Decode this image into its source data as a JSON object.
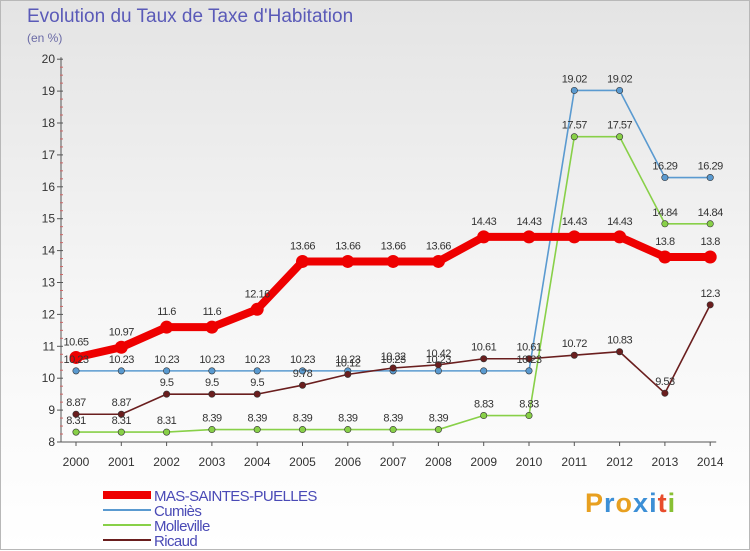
{
  "header": {
    "title": "Evolution du Taux de Taxe d'Habitation",
    "subtitle": "(en %)"
  },
  "brand": {
    "letters": [
      "P",
      "r",
      "o",
      "x",
      "i",
      "t",
      "i"
    ],
    "colors": [
      "#e8a020",
      "#3c8fd6",
      "#e8a020",
      "#3c8fd6",
      "#3c8fd6",
      "#e84c2c",
      "#88c033"
    ]
  },
  "chart_data": {
    "type": "line",
    "title": "Evolution du Taux de Taxe d'Habitation",
    "ylabel": "(en %)",
    "xlabel": "",
    "x": [
      "2000",
      "2001",
      "2002",
      "2003",
      "2004",
      "2005",
      "2006",
      "2007",
      "2008",
      "2009",
      "2010",
      "2011",
      "2012",
      "2013",
      "2014"
    ],
    "ylim": [
      8,
      20
    ],
    "yticks": [
      "8",
      "9",
      "10",
      "11",
      "12",
      "13",
      "14",
      "15",
      "16",
      "17",
      "18",
      "19",
      "20"
    ],
    "grid": false,
    "legend_position": "bottom-left",
    "series": [
      {
        "name": "MAS-SAINTES-PUELLES",
        "color": "#ee0000",
        "emphasis": true,
        "values": [
          10.65,
          10.97,
          11.6,
          11.6,
          12.16,
          13.66,
          13.66,
          13.66,
          13.66,
          14.43,
          14.43,
          14.43,
          14.43,
          13.8,
          13.8
        ],
        "labels": [
          "10.65",
          "10.97",
          "11.6",
          "11.6",
          "12.16",
          "13.66",
          "13.66",
          "13.66",
          "13.66",
          "14.43",
          "14.43",
          "14.43",
          "14.43",
          "13.8",
          "13.8"
        ]
      },
      {
        "name": "Cumiès",
        "color": "#5a9ad0",
        "emphasis": false,
        "values": [
          10.23,
          10.23,
          10.23,
          10.23,
          10.23,
          10.23,
          10.23,
          10.23,
          10.23,
          10.23,
          10.23,
          19.02,
          19.02,
          16.29,
          16.29
        ],
        "labels": [
          "10.23",
          "10.23",
          "10.23",
          "10.23",
          "10.23",
          "10.23",
          "10.23",
          "10.23",
          "10.23",
          "",
          "10.23",
          "19.02",
          "19.02",
          "16.29",
          "16.29"
        ]
      },
      {
        "name": "Molleville",
        "color": "#88d048",
        "emphasis": false,
        "values": [
          8.31,
          8.31,
          8.31,
          8.39,
          8.39,
          8.39,
          8.39,
          8.39,
          8.39,
          8.83,
          8.83,
          17.57,
          17.57,
          14.84,
          14.84
        ],
        "labels": [
          "8.31",
          "8.31",
          "8.31",
          "8.39",
          "8.39",
          "8.39",
          "8.39",
          "8.39",
          "8.39",
          "8.83",
          "8.83",
          "17.57",
          "17.57",
          "14.84",
          "14.84"
        ]
      },
      {
        "name": "Ricaud",
        "color": "#6a1e1e",
        "emphasis": false,
        "values": [
          8.87,
          8.87,
          9.5,
          9.5,
          9.5,
          9.78,
          10.12,
          10.32,
          10.42,
          10.61,
          10.61,
          10.72,
          10.83,
          9.53,
          12.3
        ],
        "labels": [
          "8.87",
          "8.87",
          "9.5",
          "9.5",
          "9.5",
          "9.78",
          "10.12",
          "10.32",
          "10.42",
          "10.61",
          "10.61",
          "10.72",
          "10.83",
          "9.53",
          "12.3"
        ]
      }
    ]
  }
}
